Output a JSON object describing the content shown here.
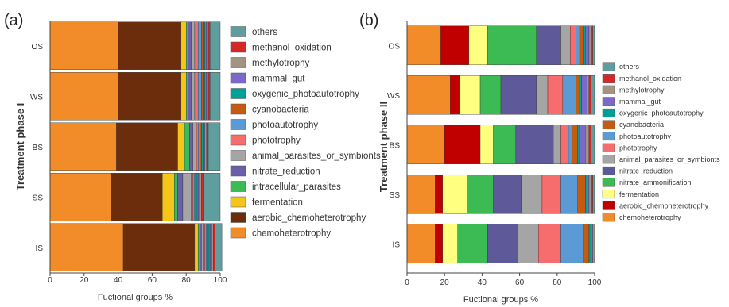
{
  "chart_data": [
    {
      "type": "bar",
      "orientation": "horizontal",
      "stacked": true,
      "panel_label": "(a)",
      "ylabel": "Treatment phase I",
      "xlabel": "Fuctional groups %",
      "xlim": [
        0,
        100
      ],
      "x_ticks": [
        "0",
        "20",
        "40",
        "60",
        "80",
        "100"
      ],
      "categories": [
        "OS",
        "WS",
        "BS",
        "SS",
        "IS"
      ],
      "legend_position": "right",
      "series": [
        {
          "name": "chemoheterotrophy",
          "color": "#F28C28",
          "values": [
            40,
            40,
            39,
            36,
            43
          ]
        },
        {
          "name": "aerobic_chemoheterotrophy",
          "color": "#6B2D0C",
          "values": [
            37,
            37,
            36,
            30,
            42
          ]
        },
        {
          "name": "fermentation",
          "color": "#F5C518",
          "values": [
            3,
            3,
            4,
            7,
            2
          ]
        },
        {
          "name": "intracellular_parasites",
          "color": "#3CBA54",
          "values": [
            1,
            1,
            3,
            2,
            1
          ]
        },
        {
          "name": "nitrate_reduction",
          "color": "#6A5FA8",
          "values": [
            2,
            2,
            2,
            3,
            1
          ]
        },
        {
          "name": "animal_parasites_or_symbionts",
          "color": "#A5A5A5",
          "values": [
            2,
            2,
            2,
            5,
            1
          ]
        },
        {
          "name": "phototrophy",
          "color": "#F76C6C",
          "values": [
            2,
            2,
            1,
            1,
            1
          ]
        },
        {
          "name": "photoautotrophy",
          "color": "#5B9BD5",
          "values": [
            2,
            2,
            1,
            1,
            1
          ]
        },
        {
          "name": "cyanobacteria",
          "color": "#C55A11",
          "values": [
            1,
            1,
            1,
            1,
            1
          ]
        },
        {
          "name": "oxygenic_photoautotrophy",
          "color": "#00A09A",
          "values": [
            1,
            1,
            1,
            1,
            1
          ]
        },
        {
          "name": "mammal_gut",
          "color": "#7B68C8",
          "values": [
            1,
            1,
            1,
            1,
            1
          ]
        },
        {
          "name": "methylotrophy",
          "color": "#A39382",
          "values": [
            1,
            1,
            1,
            1,
            1
          ]
        },
        {
          "name": "methanol_oxidation",
          "color": "#D62728",
          "values": [
            1,
            1,
            1,
            1,
            1
          ]
        },
        {
          "name": "others",
          "color": "#5E9E9E",
          "values": [
            6,
            6,
            7,
            10,
            4
          ]
        }
      ]
    },
    {
      "type": "bar",
      "orientation": "horizontal",
      "stacked": true,
      "panel_label": "(b)",
      "ylabel": "Treatment phase II",
      "xlabel": "Fuctional groups %",
      "xlim": [
        0,
        100
      ],
      "x_ticks": [
        "0",
        "20",
        "40",
        "60",
        "80",
        "100"
      ],
      "categories": [
        "OS",
        "WS",
        "BS",
        "SS",
        "IS"
      ],
      "legend_position": "right",
      "series": [
        {
          "name": "chemoheterotrophy",
          "color": "#F28C28",
          "values": [
            18,
            23,
            20,
            15,
            15
          ]
        },
        {
          "name": "aerobic_chemoheterotrophy",
          "color": "#C00000",
          "values": [
            15,
            5,
            19,
            4,
            4
          ]
        },
        {
          "name": "fermentation",
          "color": "#FFFF80",
          "values": [
            10,
            11,
            7,
            13,
            8
          ]
        },
        {
          "name": "nitrate_ammonification",
          "color": "#3CBA54",
          "values": [
            26,
            11,
            12,
            14,
            16
          ]
        },
        {
          "name": "nitrate_reduction",
          "color": "#5E5A9A",
          "values": [
            13,
            19,
            20,
            15,
            16
          ]
        },
        {
          "name": "animal_parasites_or_symbionts",
          "color": "#A5A5A5",
          "values": [
            5,
            6,
            4,
            11,
            11
          ]
        },
        {
          "name": "phototrophy",
          "color": "#F76C6C",
          "values": [
            3,
            8,
            4,
            10,
            12
          ]
        },
        {
          "name": "photoautotrophy",
          "color": "#5B9BD5",
          "values": [
            2,
            7,
            2,
            9,
            12
          ]
        },
        {
          "name": "cyanobacteria",
          "color": "#C55A11",
          "values": [
            2,
            2,
            3,
            4,
            3
          ]
        },
        {
          "name": "oxygenic_photoautotrophy",
          "color": "#00A09A",
          "values": [
            1,
            1,
            1,
            1,
            1
          ]
        },
        {
          "name": "mammal_gut",
          "color": "#7B68C8",
          "values": [
            2,
            3,
            3,
            1,
            1
          ]
        },
        {
          "name": "methylotrophy",
          "color": "#A39382",
          "values": [
            1,
            1,
            2,
            1,
            1
          ]
        },
        {
          "name": "methanol_oxidation",
          "color": "#D62728",
          "values": [
            1,
            1,
            1,
            1,
            0
          ]
        },
        {
          "name": "others",
          "color": "#5E9E9E",
          "values": [
            1,
            2,
            2,
            1,
            0
          ]
        }
      ]
    }
  ],
  "legends": [
    [
      {
        "label": "others",
        "color": "#5E9E9E"
      },
      {
        "label": "methanol_oxidation",
        "color": "#D62728"
      },
      {
        "label": "methylotrophy",
        "color": "#A39382"
      },
      {
        "label": "mammal_gut",
        "color": "#7B68C8"
      },
      {
        "label": "oxygenic_photoautotrophy",
        "color": "#00A09A"
      },
      {
        "label": "cyanobacteria",
        "color": "#C55A11"
      },
      {
        "label": "photoautotrophy",
        "color": "#5B9BD5"
      },
      {
        "label": "phototrophy",
        "color": "#F76C6C"
      },
      {
        "label": "animal_parasites_or_symbionts",
        "color": "#A5A5A5"
      },
      {
        "label": "nitrate_reduction",
        "color": "#6A5FA8"
      },
      {
        "label": "intracellular_parasites",
        "color": "#3CBA54"
      },
      {
        "label": "fermentation",
        "color": "#F5C518"
      },
      {
        "label": "aerobic_chemoheterotrophy",
        "color": "#6B2D0C"
      },
      {
        "label": "chemoheterotrophy",
        "color": "#F28C28"
      }
    ],
    [
      {
        "label": "others",
        "color": "#5E9E9E"
      },
      {
        "label": "methanol_oxidation",
        "color": "#D62728"
      },
      {
        "label": "methylotrophy",
        "color": "#A39382"
      },
      {
        "label": "mammal_gut",
        "color": "#7B68C8"
      },
      {
        "label": "oxygenic_photoautotrophy",
        "color": "#00A09A"
      },
      {
        "label": "cyanobacteria",
        "color": "#C55A11"
      },
      {
        "label": "photoautotrophy",
        "color": "#5B9BD5"
      },
      {
        "label": "phototrophy",
        "color": "#F76C6C"
      },
      {
        "label": "animal_parasites_or_symbionts",
        "color": "#A5A5A5"
      },
      {
        "label": "nitrate_reduction",
        "color": "#5E5A9A"
      },
      {
        "label": "nitrate_ammonification",
        "color": "#3CBA54"
      },
      {
        "label": "fermentation",
        "color": "#FFFF80"
      },
      {
        "label": "aerobic_chemoheterotrophy",
        "color": "#C00000"
      },
      {
        "label": "chemoheterotrophy",
        "color": "#F28C28"
      }
    ]
  ]
}
